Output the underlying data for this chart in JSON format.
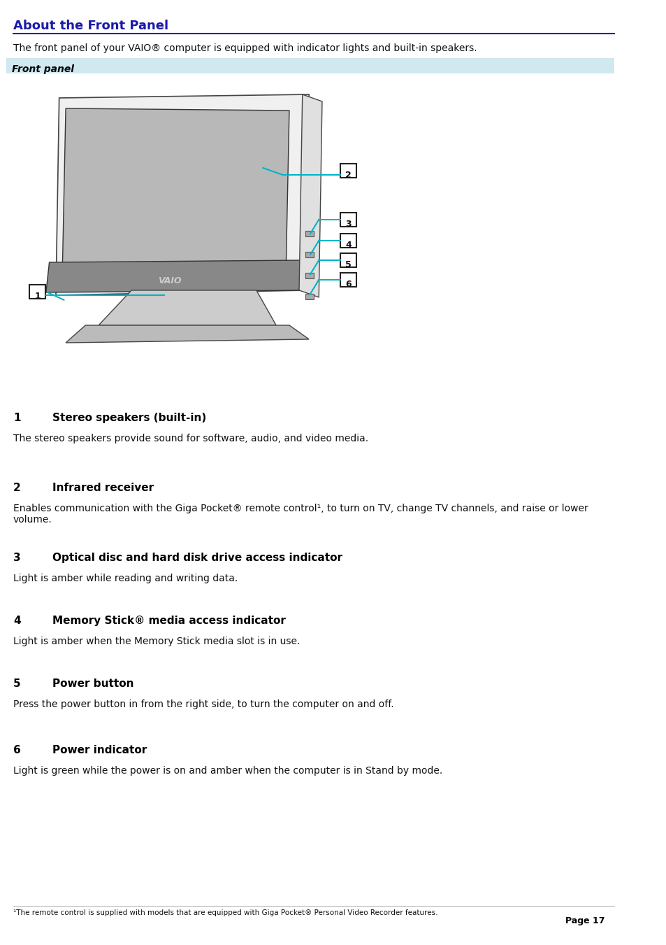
{
  "title": "About the Front Panel",
  "subtitle": "The front panel of your VAIO® computer is equipped with indicator lights and built-in speakers.",
  "section_header": "Front panel",
  "section_header_bg": "#d0e8f0",
  "items": [
    {
      "num": "1",
      "label": "Stereo speakers (built-in)",
      "desc": "The stereo speakers provide sound for software, audio, and video media."
    },
    {
      "num": "2",
      "label": "Infrared receiver",
      "desc": "Enables communication with the Giga Pocket® remote control¹, to turn on TV, change TV channels, and raise or lower\nvolume."
    },
    {
      "num": "3",
      "label": "Optical disc and hard disk drive access indicator",
      "desc": "Light is amber while reading and writing data."
    },
    {
      "num": "4",
      "label": "Memory Stick® media access indicator",
      "desc": "Light is amber when the Memory Stick media slot is in use."
    },
    {
      "num": "5",
      "label": "Power button",
      "desc": "Press the power button in from the right side, to turn the computer on and off."
    },
    {
      "num": "6",
      "label": "Power indicator",
      "desc": "Light is green while the power is on and amber when the computer is in Stand by mode."
    }
  ],
  "footnote": "¹The remote control is supplied with models that are equipped with Giga Pocket® Personal Video Recorder features.",
  "page": "Page 17",
  "title_color": "#1a1aaa",
  "title_underline_color": "#2222aa",
  "body_text_color": "#111111",
  "label_color": "#000000",
  "bg_color": "#ffffff"
}
